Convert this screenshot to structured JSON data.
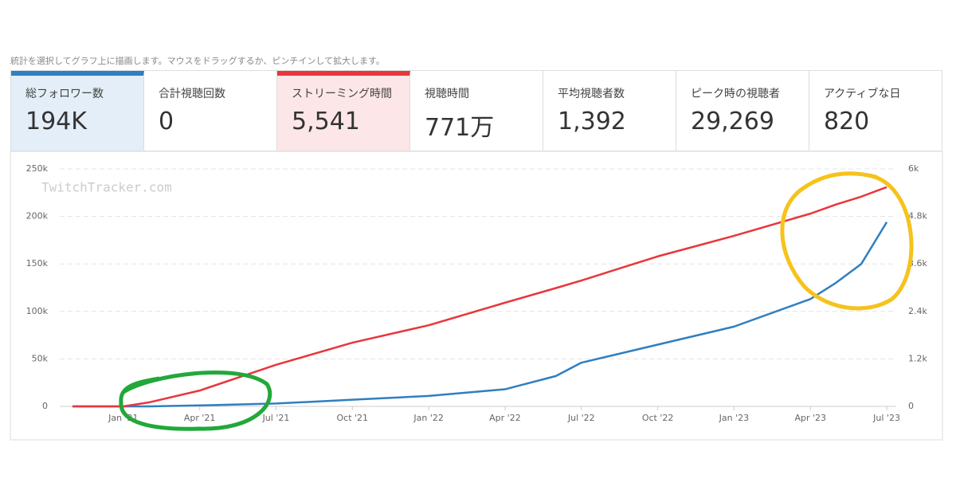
{
  "hint": "統計を選択してグラフ上に描画します。マウスをドラッグするか、ピンチインして拡大します。",
  "cards": [
    {
      "label": "総フォロワー数",
      "value": "194K"
    },
    {
      "label": "合計視聴回数",
      "value": "0"
    },
    {
      "label": "ストリーミング時間",
      "value": "5,541"
    },
    {
      "label": "視聴時間",
      "value": "771万"
    },
    {
      "label": "平均視聴者数",
      "value": "1,392"
    },
    {
      "label": "ピーク時の視聴者",
      "value": "29,269"
    },
    {
      "label": "アクティブな日",
      "value": "820"
    }
  ],
  "chart_data": {
    "type": "line",
    "watermark": "TwitchTracker.com",
    "x": [
      "2020-11",
      "2021-01",
      "2021-02",
      "2021-04",
      "2021-07",
      "2021-10",
      "2022-01",
      "2022-04",
      "2022-06",
      "2022-07",
      "2022-10",
      "2023-01",
      "2023-04",
      "2023-05",
      "2023-06",
      "2023-07"
    ],
    "xlim": [
      "2020-10",
      "2023-08"
    ],
    "xticks": [
      {
        "value": "2021-01",
        "label": "Jan '21"
      },
      {
        "value": "2021-04",
        "label": "Apr '21"
      },
      {
        "value": "2021-07",
        "label": "Jul '21"
      },
      {
        "value": "2021-10",
        "label": "Oct '21"
      },
      {
        "value": "2022-01",
        "label": "Jan '22"
      },
      {
        "value": "2022-04",
        "label": "Apr '22"
      },
      {
        "value": "2022-07",
        "label": "Jul '22"
      },
      {
        "value": "2022-10",
        "label": "Oct '22"
      },
      {
        "value": "2023-01",
        "label": "Jan '23"
      },
      {
        "value": "2023-04",
        "label": "Apr '23"
      },
      {
        "value": "2023-07",
        "label": "Jul '23"
      }
    ],
    "ylim": [
      0,
      250000
    ],
    "yticks": [
      0,
      {
        "value": 50000,
        "label": "50k"
      },
      {
        "value": 100000,
        "label": "100k"
      },
      {
        "value": 150000,
        "label": "150k"
      },
      {
        "value": 200000,
        "label": "200k"
      },
      {
        "value": 250000,
        "label": "250k"
      }
    ],
    "y2lim": [
      0,
      6000
    ],
    "y2ticks": [
      0,
      {
        "value": 1200,
        "label": "1.2k"
      },
      {
        "value": 2400,
        "label": "2.4k"
      },
      {
        "value": 3600,
        "label": "3.6k"
      },
      {
        "value": 4800,
        "label": "4.8k"
      },
      {
        "value": 6000,
        "label": "6k"
      }
    ],
    "grid": true,
    "series": [
      {
        "color": "#2f7fc1",
        "values": [
          0,
          0,
          0,
          1000,
          3000,
          7000,
          11000,
          18000,
          32000,
          46000,
          65000,
          84000,
          113000,
          130000,
          150000,
          194000
        ]
      },
      {
        "color": "#e8363c",
        "axis": "y2",
        "values": [
          0,
          0,
          100,
          400,
          1050,
          1610,
          2050,
          2620,
          2990,
          3180,
          3790,
          4310,
          4870,
          5100,
          5300,
          5541
        ]
      }
    ]
  }
}
